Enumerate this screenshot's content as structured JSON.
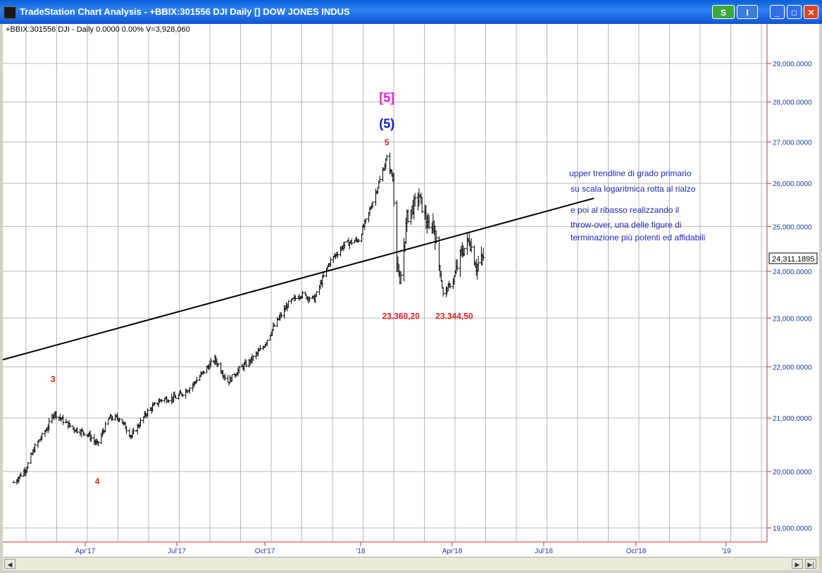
{
  "window": {
    "title": "TradeStation Chart Analysis - +BBIX:301556 DJI Daily [] DOW JONES INDUS",
    "btn_s": "S",
    "btn_i": "I",
    "btn_min": "_",
    "btn_max": "□",
    "btn_close": "✕"
  },
  "status_line": "+BBIX:301556 DJI - Daily  0.0000  0.00%  V=3,928,060",
  "chart_data": {
    "type": "candlestick",
    "title": "",
    "xlabel": "",
    "ylabel": "",
    "x_tick_labels": [
      "Apr'17",
      "Jul'17",
      "Oct'17",
      "'18",
      "Apr'18",
      "Jul'18",
      "Oct'18",
      "'19"
    ],
    "y_tick_labels": [
      "19,000.0000",
      "20,000.0000",
      "21,000.0000",
      "22,000.0000",
      "23,000.0000",
      "24,000.0000",
      "25,000.0000",
      "26,000.0000",
      "27,000.0000",
      "28,000.0000",
      "29,000.0000"
    ],
    "y_ticks": [
      19000,
      20000,
      21000,
      22000,
      23000,
      24000,
      25000,
      26000,
      27000,
      28000,
      29000
    ],
    "ylim": [
      18750,
      29700
    ],
    "y_scale": "log",
    "grid": true,
    "last_price_label": "24,311.1895",
    "last_price": 24311.19,
    "price_path": [
      [
        "2017-01-20",
        19800
      ],
      [
        "2017-02-01",
        20050
      ],
      [
        "2017-02-10",
        20450
      ],
      [
        "2017-02-22",
        20800
      ],
      [
        "2017-03-01",
        21100
      ],
      [
        "2017-03-10",
        20950
      ],
      [
        "2017-03-20",
        20800
      ],
      [
        "2017-04-03",
        20700
      ],
      [
        "2017-04-13",
        20500
      ],
      [
        "2017-04-25",
        21000
      ],
      [
        "2017-05-05",
        21000
      ],
      [
        "2017-05-17",
        20650
      ],
      [
        "2017-06-01",
        21100
      ],
      [
        "2017-06-15",
        21350
      ],
      [
        "2017-07-01",
        21400
      ],
      [
        "2017-07-15",
        21600
      ],
      [
        "2017-08-01",
        22000
      ],
      [
        "2017-08-08",
        22150
      ],
      [
        "2017-08-21",
        21700
      ],
      [
        "2017-09-01",
        21950
      ],
      [
        "2017-09-11",
        22100
      ],
      [
        "2017-09-25",
        22400
      ],
      [
        "2017-10-05",
        22800
      ],
      [
        "2017-10-20",
        23300
      ],
      [
        "2017-11-01",
        23500
      ],
      [
        "2017-11-15",
        23400
      ],
      [
        "2017-11-30",
        24200
      ],
      [
        "2017-12-15",
        24600
      ],
      [
        "2017-12-29",
        24700
      ],
      [
        "2018-01-08",
        25300
      ],
      [
        "2018-01-18",
        26000
      ],
      [
        "2018-01-26",
        26600
      ],
      [
        "2018-02-01",
        26100
      ],
      [
        "2018-02-05",
        24300
      ],
      [
        "2018-02-08",
        23700
      ],
      [
        "2018-02-15",
        25200
      ],
      [
        "2018-02-27",
        25700
      ],
      [
        "2018-03-09",
        24900
      ],
      [
        "2018-03-13",
        25100
      ],
      [
        "2018-03-23",
        23500
      ],
      [
        "2018-04-02",
        23800
      ],
      [
        "2018-04-10",
        24400
      ],
      [
        "2018-04-18",
        24700
      ],
      [
        "2018-04-25",
        24100
      ],
      [
        "2018-05-02",
        24311
      ]
    ],
    "trendline": {
      "from": [
        "2017-01-01",
        22100
      ],
      "to": [
        "2018-08-20",
        25650
      ]
    },
    "annotations": [
      {
        "text": "[5]",
        "date": "2018-01-26",
        "price": 28000,
        "color": "#e020c8",
        "size": 18
      },
      {
        "text": "(5)",
        "date": "2018-01-26",
        "price": 27350,
        "color": "#1020c0",
        "size": 18
      },
      {
        "text": "5",
        "date": "2018-01-26",
        "price": 26920,
        "color": "#e02020",
        "size": 12
      },
      {
        "text": "3",
        "date": "2017-02-28",
        "price": 21700,
        "color": "#e02020",
        "size": 12
      },
      {
        "text": "4",
        "date": "2017-04-13",
        "price": 19770,
        "color": "#e02020",
        "size": 12
      },
      {
        "text": "23.360,20",
        "date": "2018-02-09",
        "price": 22980,
        "color": "#e02020",
        "size": 12
      },
      {
        "text": "23.344,50",
        "date": "2018-04-03",
        "price": 22980,
        "color": "#e02020",
        "size": 12
      }
    ],
    "commentary": [
      "upper trendline  di grado primario",
      "su scala logaritmica rotta al rialzo",
      "e poi al ribasso realizzando il",
      "throw-over, una delle figure di",
      "terminazione più potenti ed affidabili"
    ]
  }
}
